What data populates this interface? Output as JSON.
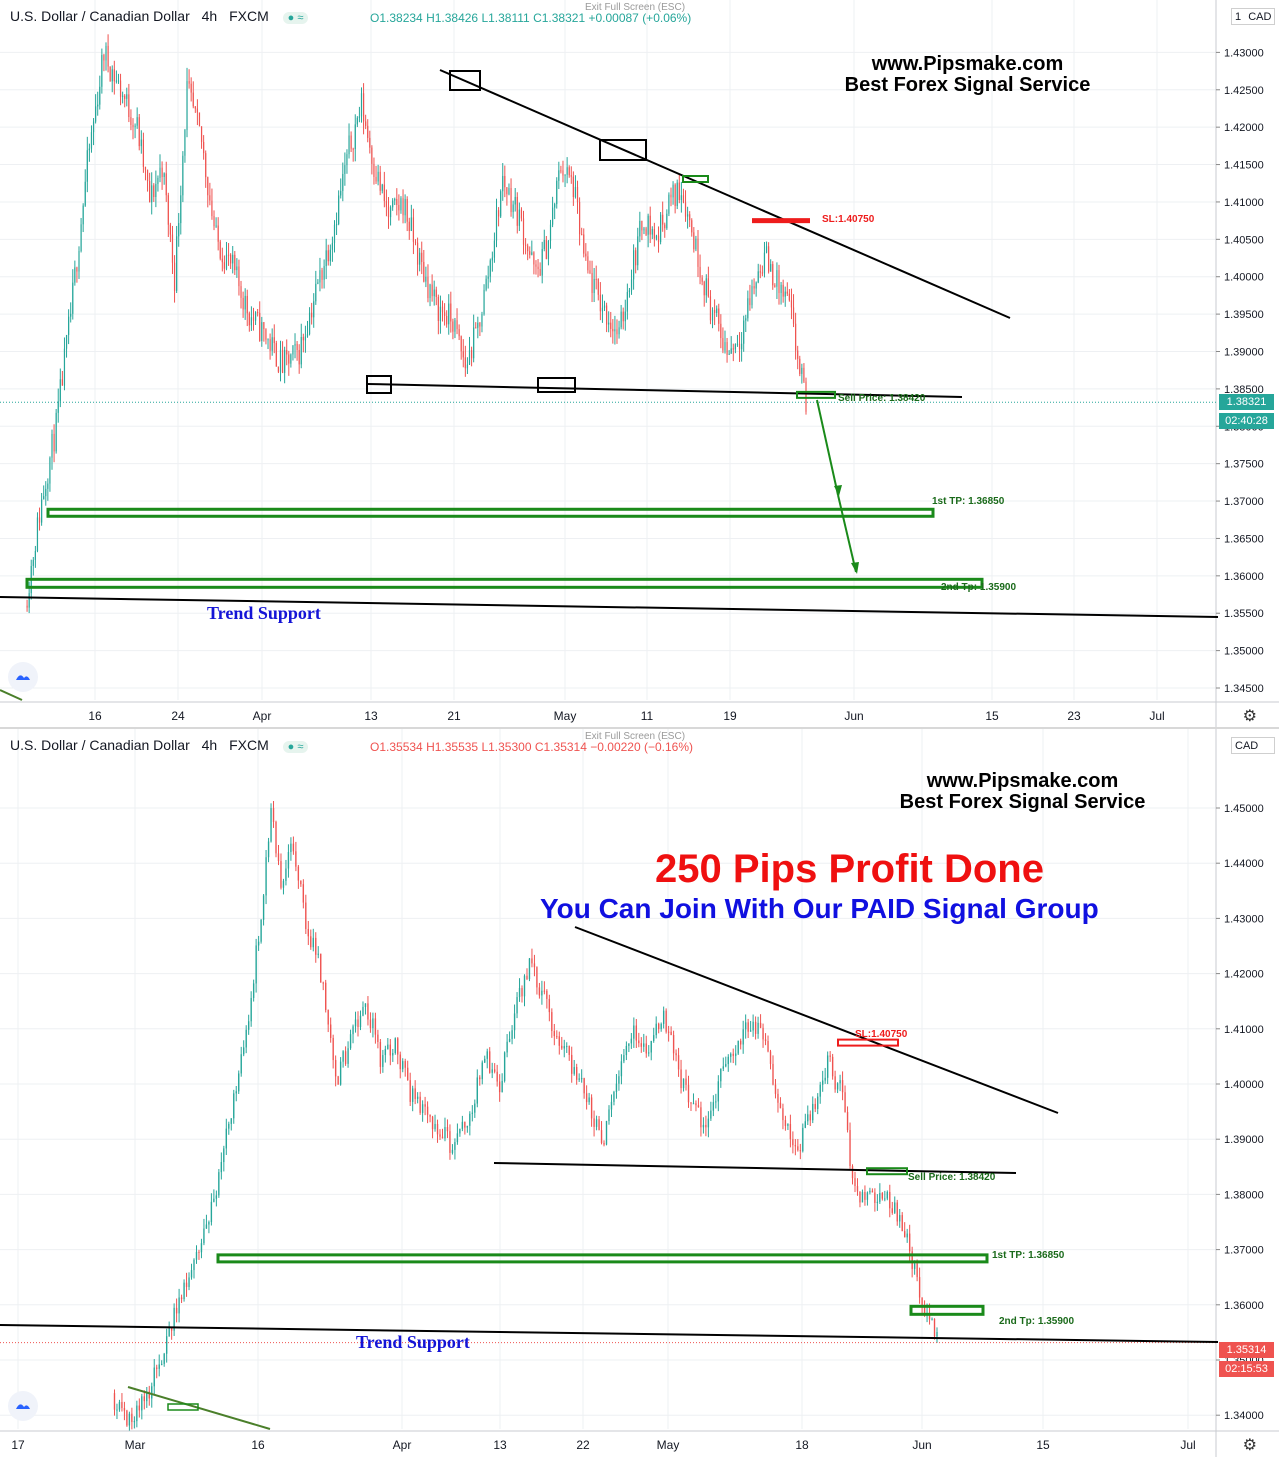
{
  "chart_data": [
    {
      "type": "line",
      "symbol_title": "U.S. Dollar / Canadian Dollar",
      "interval": "4h",
      "source": "FXCM",
      "exit_fullscreen": "Exit Full Screen (ESC)",
      "ohlc": {
        "open": "O1.38234",
        "high": "H1.38426",
        "low": "L1.38111",
        "close": "C1.38321",
        "change": "+0.00087 (+0.06%)"
      },
      "currency": "CAD",
      "currency_prefix": "1",
      "ylim": [
        1.3425,
        1.4375
      ],
      "yticks": [
        "1.43000",
        "1.42500",
        "1.42000",
        "1.41500",
        "1.41000",
        "1.40500",
        "1.40000",
        "1.39500",
        "1.39000",
        "1.38500",
        "1.38000",
        "1.37500",
        "1.37000",
        "1.36500",
        "1.36000",
        "1.35500",
        "1.35000",
        "1.34500"
      ],
      "xticks": [
        "16",
        "24",
        "Apr",
        "13",
        "21",
        "May",
        "11",
        "19",
        "Jun",
        "15",
        "23",
        "Jul"
      ],
      "last_price": "1.38321",
      "countdown": "02:40:28",
      "price_path": [
        [
          0,
          1.356
        ],
        [
          8,
          1.37
        ],
        [
          15,
          1.38
        ],
        [
          22,
          1.395
        ],
        [
          30,
          1.415
        ],
        [
          38,
          1.43
        ],
        [
          46,
          1.425
        ],
        [
          54,
          1.42
        ],
        [
          60,
          1.41
        ],
        [
          66,
          1.415
        ],
        [
          72,
          1.4
        ],
        [
          78,
          1.425
        ],
        [
          85,
          1.418
        ],
        [
          92,
          1.405
        ],
        [
          100,
          1.401
        ],
        [
          108,
          1.395
        ],
        [
          116,
          1.392
        ],
        [
          124,
          1.388
        ],
        [
          132,
          1.39
        ],
        [
          140,
          1.398
        ],
        [
          148,
          1.406
        ],
        [
          156,
          1.417
        ],
        [
          162,
          1.423
        ],
        [
          168,
          1.415
        ],
        [
          175,
          1.408
        ],
        [
          182,
          1.41
        ],
        [
          190,
          1.402
        ],
        [
          198,
          1.396
        ],
        [
          206,
          1.394
        ],
        [
          212,
          1.388
        ],
        [
          218,
          1.393
        ],
        [
          224,
          1.402
        ],
        [
          230,
          1.413
        ],
        [
          238,
          1.408
        ],
        [
          246,
          1.4
        ],
        [
          252,
          1.405
        ],
        [
          258,
          1.415
        ],
        [
          264,
          1.412
        ],
        [
          270,
          1.401
        ],
        [
          278,
          1.396
        ],
        [
          286,
          1.392
        ],
        [
          292,
          1.401
        ],
        [
          298,
          1.408
        ],
        [
          304,
          1.405
        ],
        [
          310,
          1.41
        ],
        [
          316,
          1.412
        ],
        [
          322,
          1.405
        ],
        [
          330,
          1.396
        ],
        [
          338,
          1.39
        ],
        [
          344,
          1.392
        ],
        [
          350,
          1.398
        ],
        [
          356,
          1.403
        ],
        [
          362,
          1.399
        ],
        [
          368,
          1.396
        ],
        [
          372,
          1.389
        ],
        [
          376,
          1.3832
        ]
      ],
      "price_path_x_unit": "4h bars from chart start",
      "annotations": {
        "sl_label": "SL:1.40750",
        "sell_label": "Sell Price: 1.38420",
        "tp1_label": "1st TP: 1.36850",
        "tp2_label": "2nd Tp: 1.35900",
        "trend_label": "Trend Support"
      },
      "levels": {
        "sl": 1.4075,
        "sell": 1.3842,
        "tp1": 1.3685,
        "tp2": 1.359
      },
      "brand": {
        "line1": "www.Pipsmake.com",
        "line2": "Best Forex Signal Service"
      }
    },
    {
      "type": "line",
      "symbol_title": "U.S. Dollar / Canadian Dollar",
      "interval": "4h",
      "source": "FXCM",
      "exit_fullscreen": "Exit Full Screen (ESC)",
      "ohlc": {
        "open": "O1.35534",
        "high": "H1.35535",
        "low": "L1.35300",
        "close": "C1.35314",
        "change": "−0.00220 (−0.16%)"
      },
      "currency": "CAD",
      "ylim": [
        1.3375,
        1.4625
      ],
      "yticks": [
        "1.45000",
        "1.44000",
        "1.43000",
        "1.42000",
        "1.41000",
        "1.40000",
        "1.39000",
        "1.38000",
        "1.37000",
        "1.36000",
        "1.35000",
        "1.34000"
      ],
      "xticks": [
        "17",
        "Mar",
        "16",
        "Apr",
        "13",
        "22",
        "May",
        "18",
        "Jun",
        "15",
        "Jul"
      ],
      "last_price": "1.35314",
      "countdown": "02:15:53",
      "price_path": [
        [
          0,
          1.344
        ],
        [
          6,
          1.338
        ],
        [
          12,
          1.342
        ],
        [
          18,
          1.348
        ],
        [
          24,
          1.356
        ],
        [
          30,
          1.365
        ],
        [
          36,
          1.372
        ],
        [
          42,
          1.38
        ],
        [
          48,
          1.395
        ],
        [
          54,
          1.41
        ],
        [
          60,
          1.43
        ],
        [
          64,
          1.45
        ],
        [
          68,
          1.435
        ],
        [
          72,
          1.445
        ],
        [
          78,
          1.43
        ],
        [
          84,
          1.42
        ],
        [
          90,
          1.4
        ],
        [
          96,
          1.408
        ],
        [
          102,
          1.415
        ],
        [
          108,
          1.405
        ],
        [
          114,
          1.408
        ],
        [
          120,
          1.398
        ],
        [
          126,
          1.395
        ],
        [
          132,
          1.392
        ],
        [
          138,
          1.388
        ],
        [
          144,
          1.395
        ],
        [
          150,
          1.405
        ],
        [
          156,
          1.4
        ],
        [
          162,
          1.413
        ],
        [
          168,
          1.422
        ],
        [
          174,
          1.415
        ],
        [
          180,
          1.408
        ],
        [
          186,
          1.403
        ],
        [
          192,
          1.396
        ],
        [
          198,
          1.39
        ],
        [
          204,
          1.401
        ],
        [
          210,
          1.41
        ],
        [
          216,
          1.405
        ],
        [
          222,
          1.413
        ],
        [
          228,
          1.402
        ],
        [
          234,
          1.395
        ],
        [
          240,
          1.392
        ],
        [
          246,
          1.403
        ],
        [
          252,
          1.408
        ],
        [
          258,
          1.412
        ],
        [
          264,
          1.405
        ],
        [
          270,
          1.393
        ],
        [
          276,
          1.388
        ],
        [
          282,
          1.396
        ],
        [
          288,
          1.404
        ],
        [
          294,
          1.398
        ],
        [
          298,
          1.382
        ],
        [
          304,
          1.379
        ],
        [
          310,
          1.38
        ],
        [
          316,
          1.376
        ],
        [
          320,
          1.372
        ],
        [
          324,
          1.365
        ],
        [
          328,
          1.358
        ],
        [
          332,
          1.3531
        ]
      ],
      "price_path_x_unit": "4h bars from chart start",
      "annotations": {
        "sl_label": "SL:1.40750",
        "sell_label": "Sell Price: 1.38420",
        "tp1_label": "1st TP: 1.36850",
        "tp2_label": "2nd Tp: 1.35900",
        "trend_label": "Trend Support"
      },
      "levels": {
        "sl": 1.4075,
        "sell": 1.3842,
        "tp1": 1.3685,
        "tp2": 1.359
      },
      "brand": {
        "line1": "www.Pipsmake.com",
        "line2": "Best Forex Signal Service"
      },
      "headline": "250 Pips Profit Done",
      "subheadline": "You Can Join With Our PAID Signal Group"
    }
  ],
  "colors": {
    "up": "#26a69a",
    "down": "#ef5350",
    "sl": "#ee1c1c",
    "tp": "#1a8a1a",
    "trend": "#000000",
    "brand_text": "#000000",
    "headline": "#ef1010",
    "subheadline": "#1010e0",
    "trend_label": "#1414d6"
  },
  "icons": {
    "logo": "tradingview-logo-icon",
    "settings": "gear-icon"
  }
}
